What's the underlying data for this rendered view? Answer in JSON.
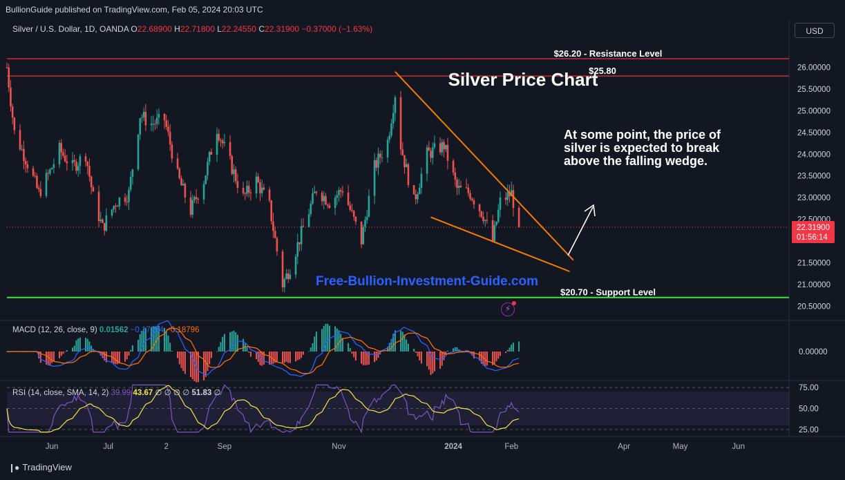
{
  "header": {
    "published": "BullionGuide published on TradingView.com, Feb 05, 2024 20:03 UTC",
    "currency": "USD",
    "brand": "TradingView"
  },
  "symbol": {
    "name": "Silver / U.S. Dollar, 1D, OANDA",
    "o_label": "O",
    "o": "22.68900",
    "h_label": "H",
    "h": "22.71800",
    "l_label": "L",
    "l": "22.24550",
    "c_label": "C",
    "c": "22.31900",
    "change": "−0.37000 (−1.63%)"
  },
  "price_badge": {
    "price": "22.31900",
    "countdown": "01:56:14"
  },
  "indicators": {
    "macd": {
      "label": "MACD (12, 26, close, 9)",
      "hist": "0.01562",
      "macd": "−0.17234",
      "signal": "−0.18796"
    },
    "rsi": {
      "label": "RSI (14, close, SMA, 14, 2)",
      "rsi": "39.99",
      "sma": "43.67",
      "na1": "∅",
      "na2": "∅",
      "na3": "∅",
      "na4": "∅",
      "bb": "51.83",
      "na5": "∅"
    }
  },
  "colors": {
    "up": "#26a69a",
    "down": "#ef5350",
    "resistance": "#b22833",
    "support": "#3ee83e",
    "wedge": "#f57c00",
    "macd": "#2962ff",
    "signal": "#ff6d00",
    "rsi": "#7e57c2",
    "rsi_sma": "#f5e642",
    "watermark": "#2962ff"
  },
  "icons": {
    "alert": "bolt-icon",
    "logo": "tradingview-logo-icon"
  },
  "chart_data": {
    "type": "candlestick",
    "title": "Silver Price Chart",
    "watermark": "Free-Bullion-Investment-Guide.com",
    "x_ticks": [
      "Jun",
      "Jul",
      "2",
      "Sep",
      "Nov",
      "2024",
      "Feb",
      "Apr",
      "May",
      "Jun"
    ],
    "x_tick_dates": [
      "2023-06-01",
      "2023-07-01",
      "2023-08-01",
      "2023-09-01",
      "2023-11-01",
      "2024-01-01",
      "2024-02-01",
      "2024-04-01",
      "2024-05-01",
      "2024-06-01"
    ],
    "x_range": [
      "2023-05-08",
      "2024-06-28"
    ],
    "ylim": [
      20.25,
      26.2
    ],
    "y_ticks": [
      "26.00000",
      "25.50000",
      "25.00000",
      "24.50000",
      "24.00000",
      "23.50000",
      "23.00000",
      "22.50000",
      "21.50000",
      "21.00000",
      "20.50000"
    ],
    "y_tick_values": [
      26.0,
      25.5,
      25.0,
      24.5,
      24.0,
      23.5,
      23.0,
      22.5,
      21.5,
      21.0,
      20.5
    ],
    "last_price": 22.319,
    "series_close": [
      {
        "date": "2023-05-08",
        "close": 26.0
      },
      {
        "date": "2023-05-12",
        "close": 24.5
      },
      {
        "date": "2023-05-18",
        "close": 23.9
      },
      {
        "date": "2023-05-25",
        "close": 23.1
      },
      {
        "date": "2023-05-31",
        "close": 23.6
      },
      {
        "date": "2023-06-05",
        "close": 24.1
      },
      {
        "date": "2023-06-12",
        "close": 23.7
      },
      {
        "date": "2023-06-19",
        "close": 24.0
      },
      {
        "date": "2023-06-23",
        "close": 23.0
      },
      {
        "date": "2023-06-28",
        "close": 22.3
      },
      {
        "date": "2023-07-05",
        "close": 22.9
      },
      {
        "date": "2023-07-12",
        "close": 23.1
      },
      {
        "date": "2023-07-18",
        "close": 24.9
      },
      {
        "date": "2023-07-24",
        "close": 24.7
      },
      {
        "date": "2023-07-31",
        "close": 24.8
      },
      {
        "date": "2023-08-07",
        "close": 23.5
      },
      {
        "date": "2023-08-14",
        "close": 22.7
      },
      {
        "date": "2023-08-21",
        "close": 23.4
      },
      {
        "date": "2023-08-28",
        "close": 24.6
      },
      {
        "date": "2023-09-04",
        "close": 23.8
      },
      {
        "date": "2023-09-11",
        "close": 23.0
      },
      {
        "date": "2023-09-18",
        "close": 23.4
      },
      {
        "date": "2023-09-25",
        "close": 22.8
      },
      {
        "date": "2023-10-02",
        "close": 21.0
      },
      {
        "date": "2023-10-06",
        "close": 21.4
      },
      {
        "date": "2023-10-13",
        "close": 22.3
      },
      {
        "date": "2023-10-20",
        "close": 23.2
      },
      {
        "date": "2023-10-27",
        "close": 22.9
      },
      {
        "date": "2023-11-03",
        "close": 23.2
      },
      {
        "date": "2023-11-13",
        "close": 22.0
      },
      {
        "date": "2023-11-20",
        "close": 23.7
      },
      {
        "date": "2023-11-27",
        "close": 24.3
      },
      {
        "date": "2023-12-01",
        "close": 25.4
      },
      {
        "date": "2023-12-04",
        "close": 24.2
      },
      {
        "date": "2023-12-11",
        "close": 22.9
      },
      {
        "date": "2023-12-18",
        "close": 24.0
      },
      {
        "date": "2023-12-27",
        "close": 24.2
      },
      {
        "date": "2024-01-03",
        "close": 23.2
      },
      {
        "date": "2024-01-10",
        "close": 23.1
      },
      {
        "date": "2024-01-17",
        "close": 22.6
      },
      {
        "date": "2024-01-22",
        "close": 22.0
      },
      {
        "date": "2024-01-26",
        "close": 22.9
      },
      {
        "date": "2024-02-01",
        "close": 23.1
      },
      {
        "date": "2024-02-05",
        "close": 22.319
      }
    ],
    "levels": [
      {
        "label": "$26.20 - Resistance Level",
        "value": 26.2
      },
      {
        "label": "$25.80",
        "value": 25.8
      },
      {
        "label": "$20.70 - Support Level",
        "value": 20.7
      }
    ],
    "wedge": {
      "upper": [
        {
          "date": "2023-12-01",
          "value": 25.9
        },
        {
          "date": "2024-03-05",
          "value": 21.56
        }
      ],
      "lower": [
        {
          "date": "2023-12-20",
          "value": 22.55
        },
        {
          "date": "2024-03-03",
          "value": 21.3
        }
      ]
    },
    "annotation": "At some point, the price of silver is expected to break above the falling wedge.",
    "annotation_lines": [
      "At some point, the price of",
      "silver is expected to break",
      "above the falling wedge."
    ],
    "macd": {
      "ylim": [
        -0.6,
        0.6
      ],
      "y_ticks": [
        "0.00000"
      ],
      "y_tick_values": [
        0.0
      ]
    },
    "rsi": {
      "ylim": [
        20,
        80
      ],
      "y_ticks": [
        "75.00",
        "50.00",
        "25.00"
      ],
      "y_tick_values": [
        75,
        50,
        25
      ],
      "band": [
        30,
        70
      ]
    }
  }
}
